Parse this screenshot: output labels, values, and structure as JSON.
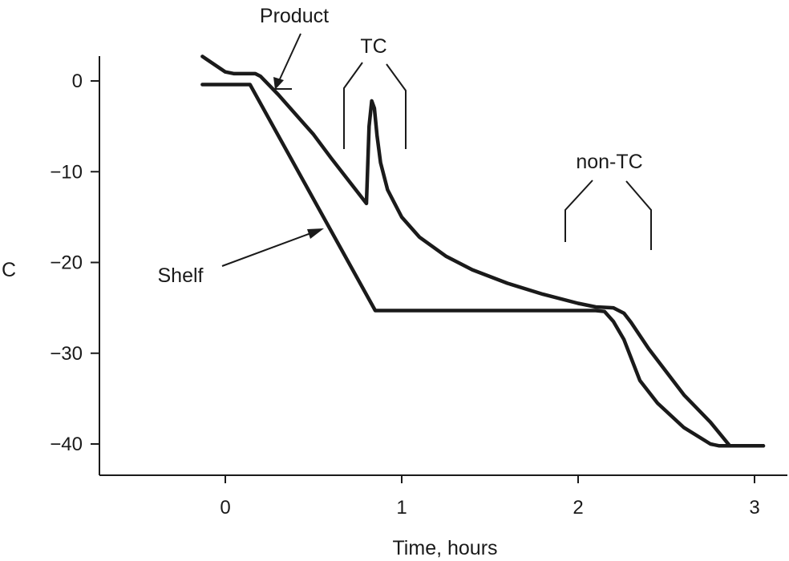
{
  "chart_data": {
    "type": "line",
    "title": "",
    "xlabel": "Time, hours",
    "ylabel": "C",
    "xlim": [
      -0.7,
      3.15
    ],
    "ylim": [
      -43.5,
      2.7
    ],
    "x_ticks": [
      0,
      1,
      2,
      3
    ],
    "x_tick_labels": [
      "0",
      "1",
      "2",
      "3"
    ],
    "y_ticks": [
      0,
      -10,
      -20,
      -30,
      -40
    ],
    "y_tick_labels": [
      "0",
      "−10",
      "−20",
      "−30",
      "−40"
    ],
    "grid": false,
    "series": [
      {
        "name": "Product",
        "x": [
          -0.13,
          0.0,
          0.05,
          0.17,
          0.2,
          0.3,
          0.45,
          0.5,
          0.6,
          0.7,
          0.8,
          0.815,
          0.83,
          0.845,
          0.86,
          0.88,
          0.92,
          1.0,
          1.1,
          1.25,
          1.4,
          1.6,
          1.8,
          2.0,
          2.1,
          2.2,
          2.26,
          2.3,
          2.4,
          2.6,
          2.75,
          2.86,
          3.05
        ],
        "y": [
          2.7,
          1.0,
          0.8,
          0.8,
          0.5,
          -1.5,
          -4.8,
          -5.9,
          -8.5,
          -11.0,
          -13.5,
          -5.0,
          -2.2,
          -3.0,
          -6.0,
          -9.0,
          -12.0,
          -15.0,
          -17.2,
          -19.3,
          -20.8,
          -22.3,
          -23.5,
          -24.5,
          -24.9,
          -25.0,
          -25.6,
          -26.6,
          -29.5,
          -34.6,
          -37.6,
          -40.2,
          -40.2
        ]
      },
      {
        "name": "Shelf",
        "x": [
          -0.13,
          0.14,
          0.85,
          2.1,
          2.15,
          2.2,
          2.26,
          2.3,
          2.35,
          2.45,
          2.6,
          2.75,
          2.8,
          3.05
        ],
        "y": [
          -0.4,
          -0.4,
          -25.3,
          -25.3,
          -25.4,
          -26.5,
          -28.5,
          -30.5,
          -33.0,
          -35.5,
          -38.2,
          -40.0,
          -40.2,
          -40.2
        ]
      }
    ],
    "annotations": {
      "product_label": "Product",
      "shelf_label": "Shelf",
      "tc_label": "TC",
      "non_tc_label": "non-TC"
    }
  }
}
